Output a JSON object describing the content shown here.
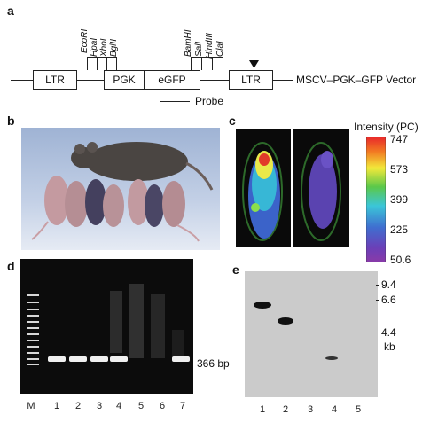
{
  "panels": {
    "a": {
      "letter": "a",
      "restriction_sites": [
        "EcoRI",
        "HpaI",
        "XhoI",
        "BglII",
        "BamHI",
        "SalI",
        "HindIII",
        "ClaI"
      ],
      "elements": [
        "LTR",
        "PGK",
        "eGFP",
        "LTR"
      ],
      "vector_name": "MSCV–PGK–GFP Vector",
      "probe_label": "Probe"
    },
    "b": {
      "letter": "b"
    },
    "c": {
      "letter": "c",
      "scale_title": "Intensity (PC)",
      "scale_ticks": [
        "747",
        "573",
        "399",
        "225",
        "50.6"
      ]
    },
    "d": {
      "letter": "d",
      "lanes": [
        "M",
        "1",
        "2",
        "3",
        "4",
        "5",
        "6",
        "7"
      ],
      "band_label": "366 bp"
    },
    "e": {
      "letter": "e",
      "size_markers": [
        "9.4",
        "6.6",
        "4.4"
      ],
      "unit": "kb",
      "lanes": [
        "1",
        "2",
        "3",
        "4",
        "5"
      ]
    }
  }
}
